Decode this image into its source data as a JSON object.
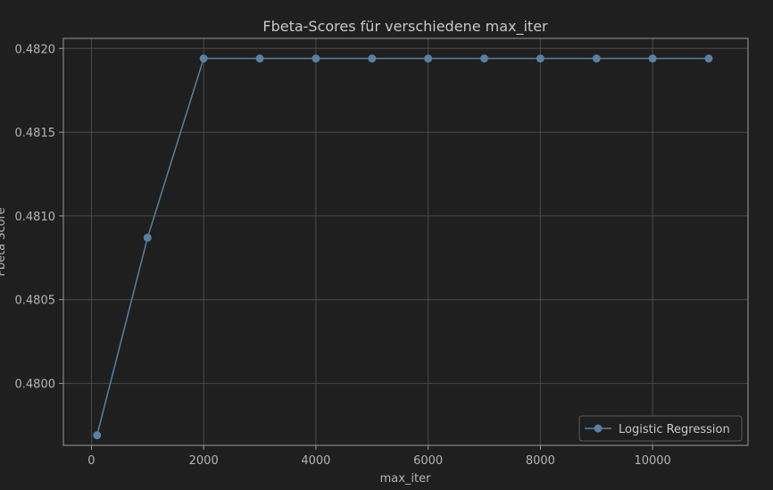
{
  "chart_data": {
    "type": "line",
    "title": "Fbeta-Scores für verschiedene max_iter",
    "xlabel": "max_iter",
    "ylabel": "Fbeta Score",
    "xlim": [
      -500,
      11700
    ],
    "ylim": [
      0.47963,
      0.48206
    ],
    "xticks": [
      0,
      2000,
      4000,
      6000,
      8000,
      10000
    ],
    "yticks": [
      0.48,
      0.4805,
      0.481,
      0.4815,
      0.482
    ],
    "ytick_labels": [
      "0.4800",
      "0.4805",
      "0.4810",
      "0.4815",
      "0.4820"
    ],
    "grid": true,
    "legend_position": "lower-right",
    "series": [
      {
        "name": "Logistic Regression",
        "color": "#5b7f9e",
        "x": [
          100,
          1000,
          2000,
          3000,
          4000,
          5000,
          6000,
          7000,
          8000,
          9000,
          10000,
          11000
        ],
        "y": [
          0.47969,
          0.48087,
          0.48194,
          0.48194,
          0.48194,
          0.48194,
          0.48194,
          0.48194,
          0.48194,
          0.48194,
          0.48194,
          0.48194
        ]
      }
    ]
  }
}
